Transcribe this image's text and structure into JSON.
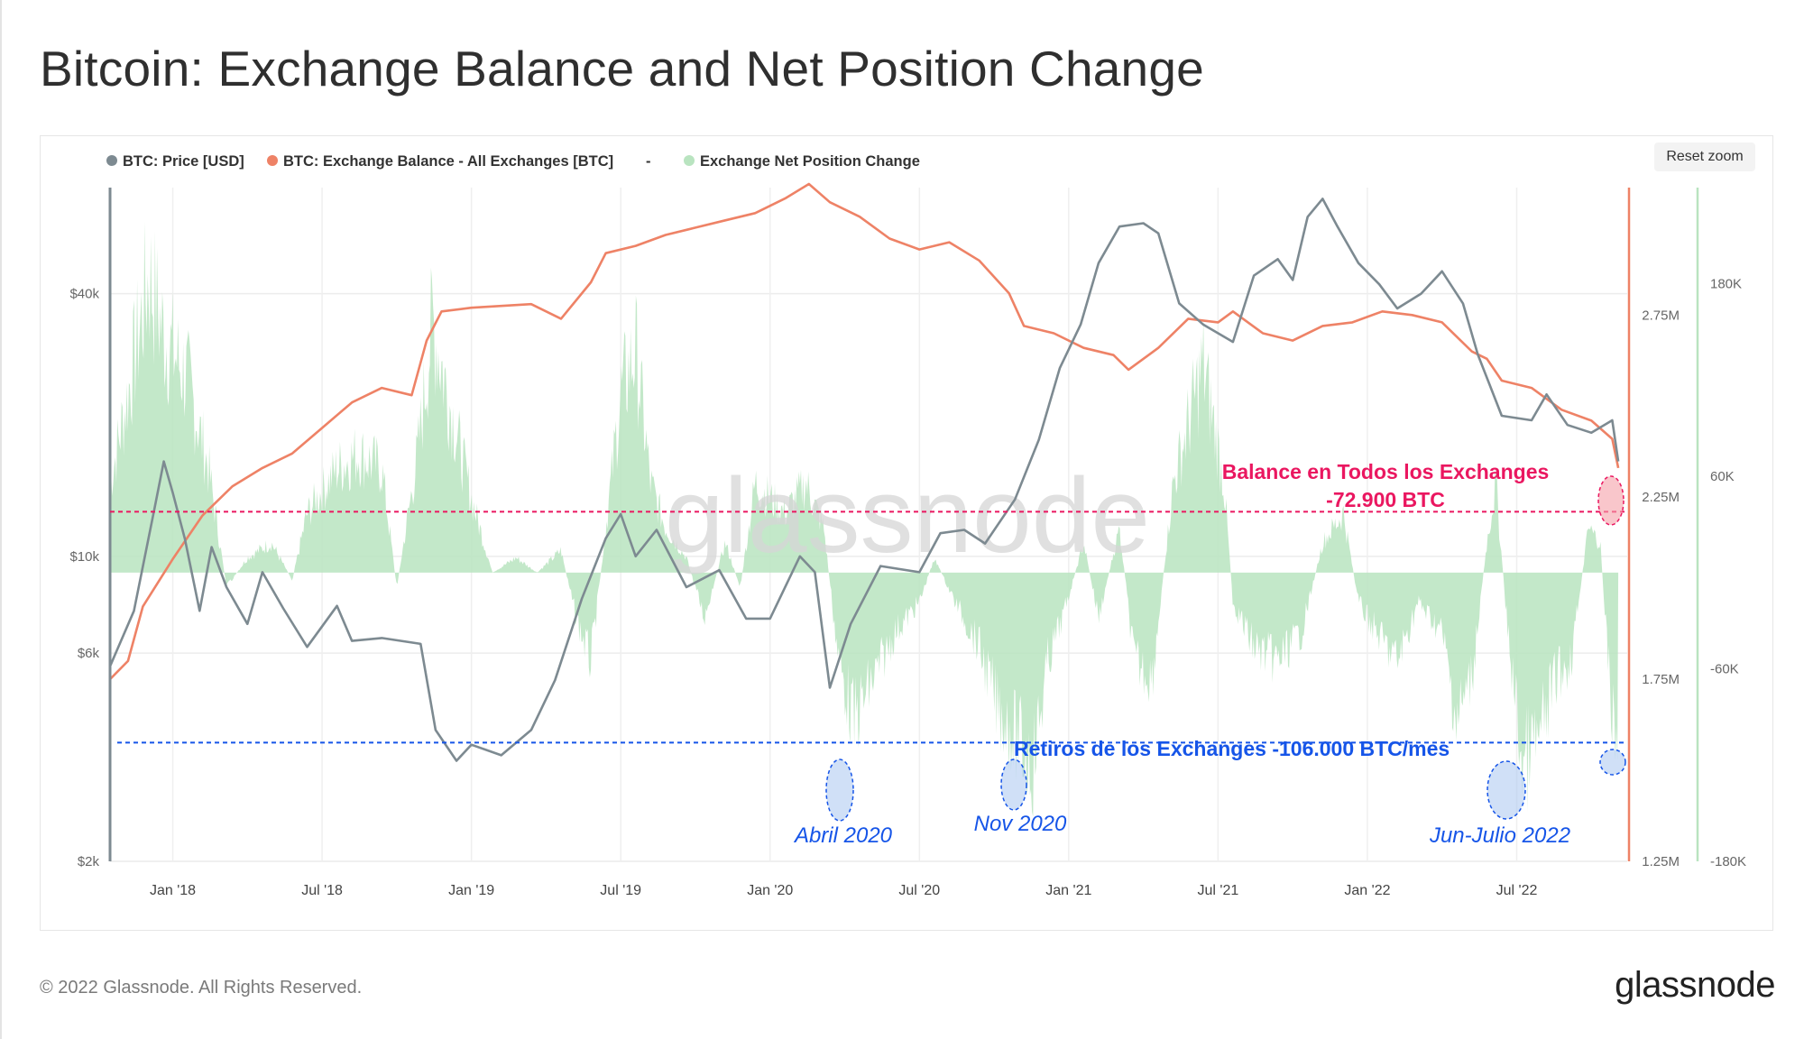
{
  "title": "Bitcoin: Exchange Balance and Net Position Change",
  "reset_zoom_label": "Reset zoom",
  "footer": {
    "copyright": "© 2022 Glassnode. All Rights Reserved.",
    "logo": "glassnode"
  },
  "colors": {
    "price": "#7d8a91",
    "balance": "#ee8266",
    "net": "#b9e4c0",
    "annot_red": "#ea1760",
    "annot_blue": "#1655e8"
  },
  "chart_data": {
    "type": "line",
    "title": "Bitcoin: Exchange Balance and Net Position Change",
    "watermark": "glassnode",
    "legend": [
      {
        "label": "BTC: Price [USD]",
        "color": "#7d8a91"
      },
      {
        "label": "BTC: Exchange Balance - All Exchanges [BTC]",
        "color": "#ee8266"
      },
      {
        "label": "-",
        "color": "none"
      },
      {
        "label": "Exchange Net Position Change",
        "color": "#b9e4c0"
      }
    ],
    "x_range": [
      "2017-10-15",
      "2022-11-15"
    ],
    "x_ticks": [
      "Jan '18",
      "Jul '18",
      "Jan '19",
      "Jul '19",
      "Jan '20",
      "Jul '20",
      "Jan '21",
      "Jul '21",
      "Jan '22",
      "Jul '22"
    ],
    "y_left": {
      "scale": "log",
      "range": [
        2000,
        70000
      ],
      "tick_values": [
        2000,
        6000,
        10000,
        40000
      ],
      "tick_labels": [
        "$2k",
        "$6k",
        "$10k",
        "$40k"
      ]
    },
    "y_right1": {
      "range": [
        1250000,
        3100000
      ],
      "tick_values": [
        1250000,
        1750000,
        2250000,
        2750000
      ],
      "tick_labels": [
        "1.25M",
        "1.75M",
        "2.25M",
        "2.75M"
      ]
    },
    "y_right2": {
      "range": [
        -180000,
        240000
      ],
      "tick_values": [
        -180000,
        -60000,
        60000,
        180000
      ],
      "tick_labels": [
        "-180K",
        "-60K",
        "60K",
        "180K"
      ]
    },
    "series": [
      {
        "name": "BTC: Price [USD]",
        "axis": "left",
        "points": [
          [
            2017.79,
            5600
          ],
          [
            2017.87,
            7500
          ],
          [
            2017.94,
            13000
          ],
          [
            2017.97,
            16500
          ],
          [
            2018.0,
            14000
          ],
          [
            2018.04,
            11000
          ],
          [
            2018.09,
            7500
          ],
          [
            2018.13,
            10500
          ],
          [
            2018.18,
            8500
          ],
          [
            2018.25,
            7000
          ],
          [
            2018.3,
            9200
          ],
          [
            2018.37,
            7600
          ],
          [
            2018.45,
            6200
          ],
          [
            2018.55,
            7700
          ],
          [
            2018.6,
            6400
          ],
          [
            2018.7,
            6500
          ],
          [
            2018.83,
            6300
          ],
          [
            2018.88,
            4000
          ],
          [
            2018.95,
            3400
          ],
          [
            2019.0,
            3700
          ],
          [
            2019.1,
            3500
          ],
          [
            2019.2,
            4000
          ],
          [
            2019.28,
            5200
          ],
          [
            2019.37,
            8000
          ],
          [
            2019.45,
            11000
          ],
          [
            2019.5,
            12500
          ],
          [
            2019.55,
            10000
          ],
          [
            2019.62,
            11500
          ],
          [
            2019.72,
            8500
          ],
          [
            2019.83,
            9300
          ],
          [
            2019.92,
            7200
          ],
          [
            2020.0,
            7200
          ],
          [
            2020.1,
            10000
          ],
          [
            2020.15,
            9200
          ],
          [
            2020.2,
            5000
          ],
          [
            2020.27,
            7000
          ],
          [
            2020.37,
            9500
          ],
          [
            2020.5,
            9200
          ],
          [
            2020.57,
            11300
          ],
          [
            2020.65,
            11500
          ],
          [
            2020.72,
            10700
          ],
          [
            2020.82,
            13500
          ],
          [
            2020.9,
            18500
          ],
          [
            2020.97,
            27000
          ],
          [
            2021.04,
            34000
          ],
          [
            2021.1,
            47000
          ],
          [
            2021.17,
            57000
          ],
          [
            2021.25,
            58000
          ],
          [
            2021.3,
            55000
          ],
          [
            2021.37,
            38000
          ],
          [
            2021.45,
            34000
          ],
          [
            2021.55,
            31000
          ],
          [
            2021.62,
            44000
          ],
          [
            2021.7,
            48000
          ],
          [
            2021.75,
            43000
          ],
          [
            2021.8,
            60000
          ],
          [
            2021.85,
            66000
          ],
          [
            2021.9,
            57000
          ],
          [
            2021.97,
            47000
          ],
          [
            2022.04,
            42000
          ],
          [
            2022.1,
            37000
          ],
          [
            2022.18,
            40000
          ],
          [
            2022.25,
            45000
          ],
          [
            2022.32,
            38000
          ],
          [
            2022.37,
            29000
          ],
          [
            2022.45,
            21000
          ],
          [
            2022.55,
            20500
          ],
          [
            2022.6,
            23500
          ],
          [
            2022.67,
            20000
          ],
          [
            2022.75,
            19200
          ],
          [
            2022.82,
            20500
          ],
          [
            2022.84,
            16500
          ]
        ]
      },
      {
        "name": "BTC: Exchange Balance - All Exchanges [BTC]",
        "axis": "right1",
        "points": [
          [
            2017.79,
            1750000
          ],
          [
            2017.85,
            1800000
          ],
          [
            2017.9,
            1950000
          ],
          [
            2018.0,
            2080000
          ],
          [
            2018.1,
            2200000
          ],
          [
            2018.2,
            2280000
          ],
          [
            2018.3,
            2330000
          ],
          [
            2018.4,
            2370000
          ],
          [
            2018.5,
            2440000
          ],
          [
            2018.6,
            2510000
          ],
          [
            2018.7,
            2550000
          ],
          [
            2018.8,
            2530000
          ],
          [
            2018.85,
            2680000
          ],
          [
            2018.9,
            2760000
          ],
          [
            2019.0,
            2770000
          ],
          [
            2019.1,
            2775000
          ],
          [
            2019.2,
            2780000
          ],
          [
            2019.3,
            2740000
          ],
          [
            2019.4,
            2840000
          ],
          [
            2019.45,
            2920000
          ],
          [
            2019.55,
            2940000
          ],
          [
            2019.65,
            2970000
          ],
          [
            2019.75,
            2990000
          ],
          [
            2019.85,
            3010000
          ],
          [
            2019.95,
            3030000
          ],
          [
            2020.05,
            3070000
          ],
          [
            2020.13,
            3110000
          ],
          [
            2020.2,
            3060000
          ],
          [
            2020.3,
            3020000
          ],
          [
            2020.4,
            2960000
          ],
          [
            2020.5,
            2930000
          ],
          [
            2020.6,
            2950000
          ],
          [
            2020.7,
            2900000
          ],
          [
            2020.8,
            2810000
          ],
          [
            2020.85,
            2720000
          ],
          [
            2020.95,
            2700000
          ],
          [
            2021.05,
            2660000
          ],
          [
            2021.15,
            2640000
          ],
          [
            2021.2,
            2600000
          ],
          [
            2021.3,
            2660000
          ],
          [
            2021.4,
            2740000
          ],
          [
            2021.5,
            2730000
          ],
          [
            2021.55,
            2760000
          ],
          [
            2021.65,
            2700000
          ],
          [
            2021.75,
            2680000
          ],
          [
            2021.85,
            2720000
          ],
          [
            2021.95,
            2730000
          ],
          [
            2022.05,
            2760000
          ],
          [
            2022.15,
            2750000
          ],
          [
            2022.25,
            2730000
          ],
          [
            2022.35,
            2650000
          ],
          [
            2022.4,
            2630000
          ],
          [
            2022.45,
            2570000
          ],
          [
            2022.55,
            2550000
          ],
          [
            2022.65,
            2490000
          ],
          [
            2022.75,
            2460000
          ],
          [
            2022.82,
            2410000
          ],
          [
            2022.84,
            2330000
          ]
        ]
      },
      {
        "name": "Exchange Net Position Change",
        "axis": "right2",
        "type": "area",
        "points": [
          [
            2017.79,
            60000
          ],
          [
            2017.85,
            120000
          ],
          [
            2017.92,
            200000
          ],
          [
            2017.97,
            160000
          ],
          [
            2018.05,
            130000
          ],
          [
            2018.12,
            70000
          ],
          [
            2018.18,
            -10000
          ],
          [
            2018.25,
            10000
          ],
          [
            2018.33,
            20000
          ],
          [
            2018.4,
            -5000
          ],
          [
            2018.45,
            40000
          ],
          [
            2018.55,
            70000
          ],
          [
            2018.62,
            80000
          ],
          [
            2018.7,
            70000
          ],
          [
            2018.75,
            -10000
          ],
          [
            2018.82,
            80000
          ],
          [
            2018.87,
            170000
          ],
          [
            2018.92,
            120000
          ],
          [
            2019.0,
            50000
          ],
          [
            2019.07,
            0
          ],
          [
            2019.15,
            10000
          ],
          [
            2019.22,
            0
          ],
          [
            2019.3,
            15000
          ],
          [
            2019.35,
            -30000
          ],
          [
            2019.4,
            -60000
          ],
          [
            2019.45,
            30000
          ],
          [
            2019.5,
            120000
          ],
          [
            2019.55,
            150000
          ],
          [
            2019.6,
            60000
          ],
          [
            2019.65,
            30000
          ],
          [
            2019.72,
            10000
          ],
          [
            2019.78,
            -30000
          ],
          [
            2019.85,
            20000
          ],
          [
            2019.9,
            -10000
          ],
          [
            2019.95,
            60000
          ],
          [
            2020.05,
            40000
          ],
          [
            2020.12,
            60000
          ],
          [
            2020.18,
            30000
          ],
          [
            2020.23,
            -60000
          ],
          [
            2020.28,
            -100000
          ],
          [
            2020.35,
            -70000
          ],
          [
            2020.42,
            -40000
          ],
          [
            2020.5,
            -20000
          ],
          [
            2020.55,
            10000
          ],
          [
            2020.62,
            -20000
          ],
          [
            2020.7,
            -50000
          ],
          [
            2020.76,
            -90000
          ],
          [
            2020.82,
            -110000
          ],
          [
            2020.88,
            -130000
          ],
          [
            2020.93,
            -60000
          ],
          [
            2020.98,
            -30000
          ],
          [
            2021.05,
            20000
          ],
          [
            2021.1,
            -30000
          ],
          [
            2021.17,
            30000
          ],
          [
            2021.22,
            -60000
          ],
          [
            2021.28,
            -70000
          ],
          [
            2021.35,
            60000
          ],
          [
            2021.4,
            100000
          ],
          [
            2021.45,
            140000
          ],
          [
            2021.52,
            60000
          ],
          [
            2021.55,
            -20000
          ],
          [
            2021.62,
            -50000
          ],
          [
            2021.7,
            -60000
          ],
          [
            2021.78,
            -40000
          ],
          [
            2021.85,
            20000
          ],
          [
            2021.92,
            40000
          ],
          [
            2021.97,
            -20000
          ],
          [
            2022.03,
            -40000
          ],
          [
            2022.1,
            -60000
          ],
          [
            2022.17,
            -20000
          ],
          [
            2022.25,
            -40000
          ],
          [
            2022.3,
            -100000
          ],
          [
            2022.35,
            -70000
          ],
          [
            2022.4,
            20000
          ],
          [
            2022.43,
            60000
          ],
          [
            2022.47,
            -40000
          ],
          [
            2022.52,
            -130000
          ],
          [
            2022.58,
            -110000
          ],
          [
            2022.63,
            -70000
          ],
          [
            2022.68,
            -60000
          ],
          [
            2022.74,
            30000
          ],
          [
            2022.78,
            20000
          ],
          [
            2022.82,
            -100000
          ],
          [
            2022.84,
            -120000
          ]
        ]
      }
    ],
    "reference_lines": [
      {
        "axis": "right1",
        "value": 2210000,
        "color": "#ea1760",
        "style": "dashed"
      },
      {
        "axis": "right2",
        "value": -106000,
        "color": "#1655e8",
        "style": "dashed"
      }
    ],
    "annotations": [
      {
        "id": "balance",
        "lines": [
          "Balance en Todos los Exchanges",
          "-72.900 BTC"
        ],
        "color": "#ea1760"
      },
      {
        "id": "withdrawals",
        "text": "Retiros de los Exchanges -106.000 BTC/mes",
        "color": "#1655e8"
      },
      {
        "id": "abril",
        "text": "Abril 2020",
        "color": "#1655e8",
        "at": 2020.28
      },
      {
        "id": "nov",
        "text": "Nov 2020",
        "color": "#1655e8",
        "at": 2020.88
      },
      {
        "id": "junjul",
        "text": "Jun-Julio 2022",
        "color": "#1655e8",
        "at": 2022.52
      }
    ]
  }
}
